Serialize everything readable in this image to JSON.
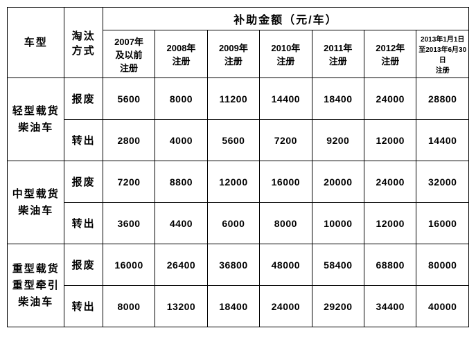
{
  "table": {
    "header": {
      "vehicle_type": "车型",
      "elimination_method": "淘汰\n方式",
      "subsidy_title": "补助金额（元/车）",
      "years": [
        "2007年\n及以前\n注册",
        "2008年\n注册",
        "2009年\n注册",
        "2010年\n注册",
        "2011年\n注册",
        "2012年\n注册",
        "2013年1月1日\n至2013年6月30日\n注册"
      ]
    },
    "rows": [
      {
        "type": "轻型载货\n柴油车",
        "methods": [
          {
            "label": "报废",
            "values": [
              "5600",
              "8000",
              "11200",
              "14400",
              "18400",
              "24000",
              "28800"
            ]
          },
          {
            "label": "转出",
            "values": [
              "2800",
              "4000",
              "5600",
              "7200",
              "9200",
              "12000",
              "14400"
            ]
          }
        ]
      },
      {
        "type": "中型载货\n柴油车",
        "methods": [
          {
            "label": "报废",
            "values": [
              "7200",
              "8800",
              "12000",
              "16000",
              "20000",
              "24000",
              "32000"
            ]
          },
          {
            "label": "转出",
            "values": [
              "3600",
              "4400",
              "6000",
              "8000",
              "10000",
              "12000",
              "16000"
            ]
          }
        ]
      },
      {
        "type": "重型载货\n重型牵引\n柴油车",
        "methods": [
          {
            "label": "报废",
            "values": [
              "16000",
              "26400",
              "36800",
              "48000",
              "58400",
              "68800",
              "80000"
            ]
          },
          {
            "label": "转出",
            "values": [
              "8000",
              "13200",
              "18400",
              "24000",
              "29200",
              "34400",
              "40000"
            ]
          }
        ]
      }
    ]
  },
  "style": {
    "border_color": "#000000",
    "background_color": "#ffffff",
    "text_color": "#000000",
    "font_family": "SimHei",
    "header_fontsize": 16,
    "cell_fontsize": 14
  }
}
